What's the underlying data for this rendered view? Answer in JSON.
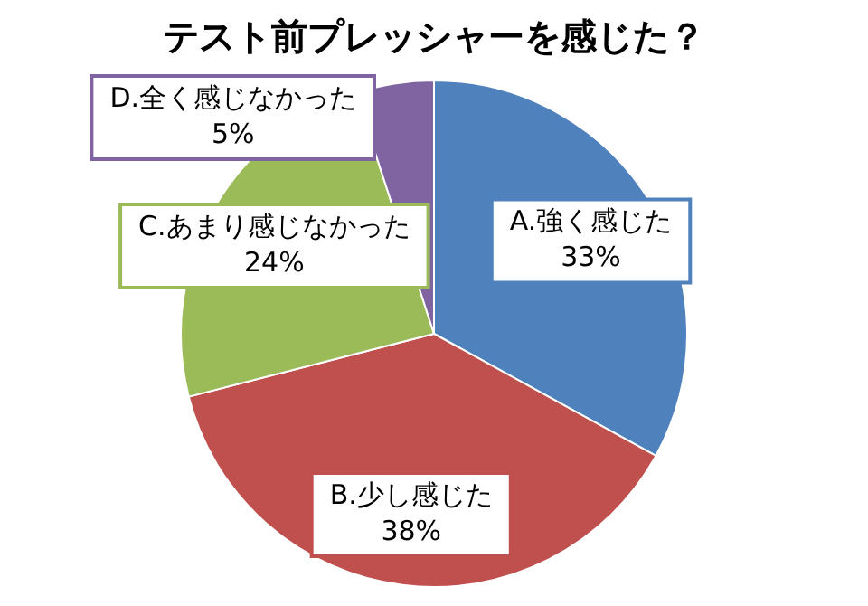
{
  "chart_data": {
    "type": "pie",
    "title": "テスト前プレッシャーを感じた？",
    "categories": [
      "A.強く感じた",
      "B.少し感じた",
      "C.あまり感じなかった",
      "D.全く感じなかった"
    ],
    "values": [
      33,
      38,
      24,
      5
    ],
    "value_labels": [
      "33%",
      "38%",
      "24%",
      "5%"
    ],
    "colors": [
      "#4f81bd",
      "#c0504d",
      "#9bbb59",
      "#8064a2"
    ],
    "legend": false
  }
}
